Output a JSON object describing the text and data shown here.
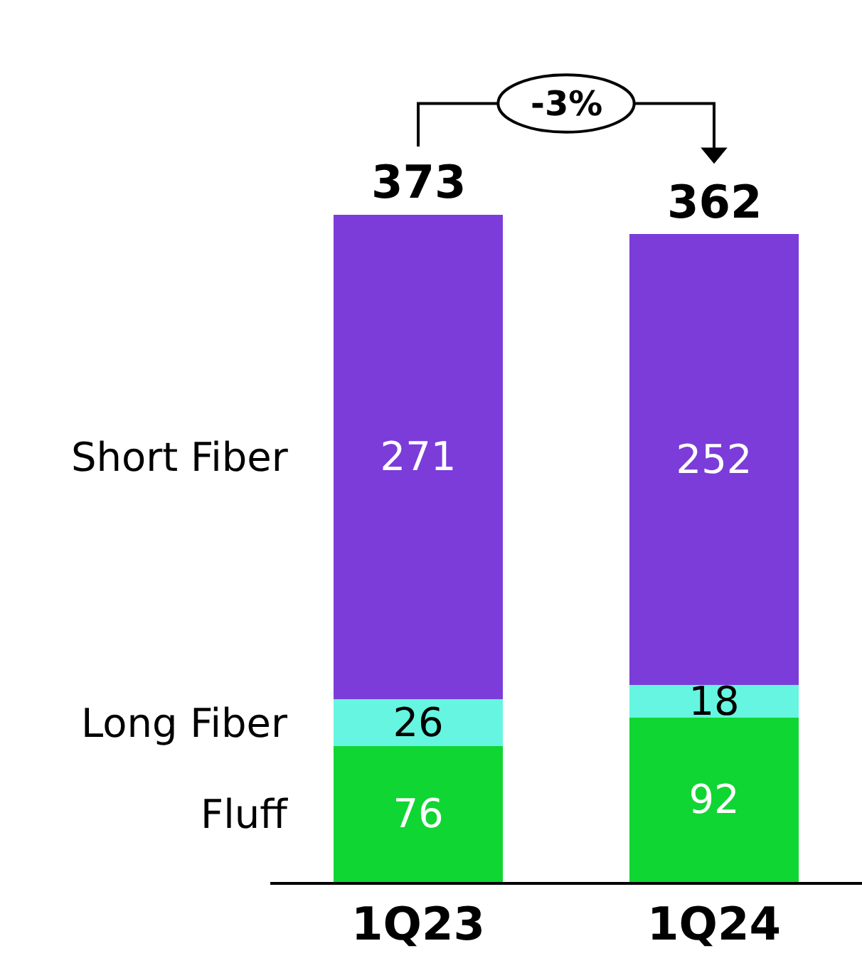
{
  "chart_data": {
    "type": "bar",
    "stacked": true,
    "categories": [
      "1Q23",
      "1Q24"
    ],
    "series": [
      {
        "name": "Fluff",
        "color": "#0fd632",
        "values": [
          76,
          92
        ]
      },
      {
        "name": "Long Fiber",
        "color": "#66f5e0",
        "values": [
          26,
          18
        ]
      },
      {
        "name": "Short Fiber",
        "color": "#7b3cd9",
        "values": [
          271,
          252
        ]
      }
    ],
    "data_labels": true,
    "totals": [
      "373",
      "362"
    ],
    "annotations": [
      "-3%"
    ],
    "legend": false
  }
}
